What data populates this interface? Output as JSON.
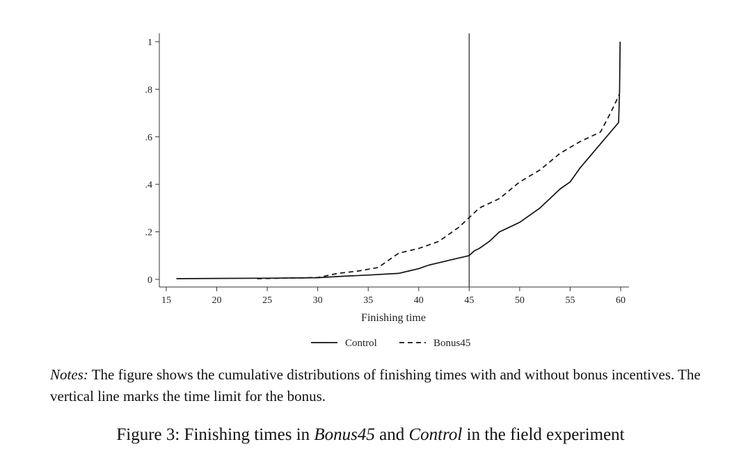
{
  "chart_data": {
    "type": "line",
    "title": "",
    "xlabel": "Finishing time",
    "ylabel": "",
    "xlim": [
      15,
      60
    ],
    "ylim": [
      0,
      1
    ],
    "x_ticks": [
      15,
      20,
      25,
      30,
      35,
      40,
      45,
      50,
      55,
      60
    ],
    "x_tick_labels": [
      "15",
      "20",
      "25",
      "30",
      "35",
      "40",
      "45",
      "50",
      "55",
      "60"
    ],
    "y_ticks": [
      0,
      0.2,
      0.4,
      0.6,
      0.8,
      1
    ],
    "y_tick_labels": [
      "0",
      ".2",
      ".4",
      ".6",
      ".8",
      "1"
    ],
    "grid": false,
    "legend_position": "bottom",
    "annotations": [
      {
        "type": "vertical-line",
        "x": 45
      }
    ],
    "series": [
      {
        "name": "Control",
        "style": "solid",
        "x": [
          16,
          20,
          25,
          30,
          32,
          35,
          38,
          39,
          40,
          41,
          42,
          43,
          44,
          45,
          45.5,
          46,
          47,
          48,
          49,
          50,
          51,
          52,
          53,
          54,
          55,
          56,
          57,
          58,
          59,
          59.8,
          59.9,
          59.95
        ],
        "y": [
          0.003,
          0.004,
          0.005,
          0.007,
          0.012,
          0.018,
          0.025,
          0.035,
          0.045,
          0.06,
          0.07,
          0.08,
          0.09,
          0.1,
          0.12,
          0.13,
          0.16,
          0.2,
          0.22,
          0.24,
          0.27,
          0.3,
          0.34,
          0.38,
          0.41,
          0.47,
          0.52,
          0.57,
          0.62,
          0.66,
          0.8,
          1.0
        ]
      },
      {
        "name": "Bonus45",
        "style": "dashed",
        "x": [
          24,
          28,
          30,
          32,
          34,
          36,
          38,
          40,
          42,
          44,
          45,
          46,
          48,
          50,
          52,
          54,
          56,
          58,
          59,
          59.9
        ],
        "y": [
          0.003,
          0.006,
          0.008,
          0.025,
          0.035,
          0.05,
          0.11,
          0.13,
          0.16,
          0.22,
          0.26,
          0.3,
          0.34,
          0.41,
          0.46,
          0.53,
          0.58,
          0.62,
          0.7,
          0.78
        ]
      }
    ]
  },
  "notes": {
    "lead": "Notes:",
    "body": " The figure shows the cumulative distributions of finishing times with and without bonus incentives. The vertical line marks the time limit for the bonus."
  },
  "caption": {
    "prefix": "Figure 3: Finishing times in ",
    "term1": "Bonus45",
    "middle": " and ",
    "term2": "Control",
    "suffix": " in the field experiment"
  }
}
